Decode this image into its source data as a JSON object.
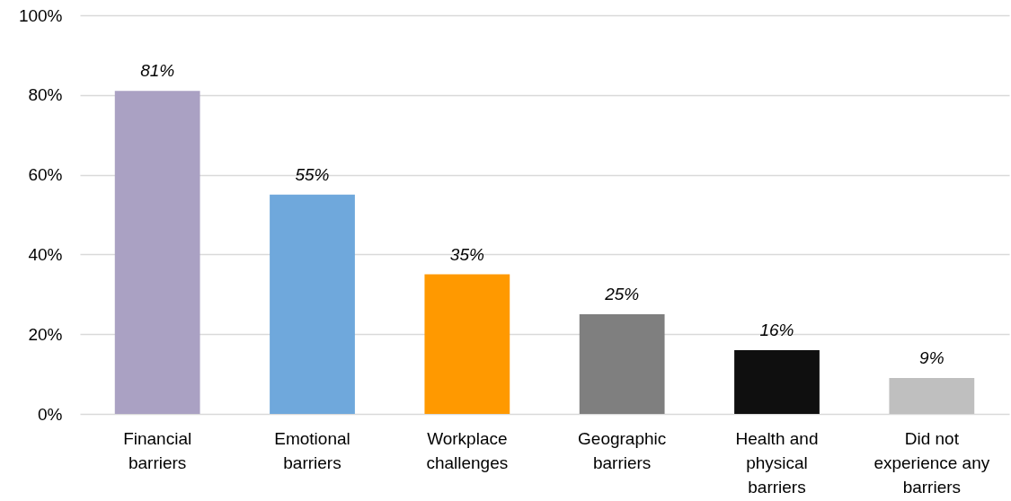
{
  "chart_data": {
    "type": "bar",
    "categories": [
      "Financial barriers",
      "Emotional barriers",
      "Workplace challenges",
      "Geographic barriers",
      "Health and physical barriers",
      "Did not experience any barriers"
    ],
    "values": [
      81,
      55,
      35,
      25,
      16,
      9
    ],
    "value_labels": [
      "81%",
      "55%",
      "35%",
      "25%",
      "16%",
      "9%"
    ],
    "colors": [
      "#aaa1c3",
      "#6fa8dc",
      "#ff9900",
      "#7f7f7f",
      "#0f0f0f",
      "#bfbfbf"
    ],
    "ylim": [
      0,
      100
    ],
    "yticks": [
      {
        "value": 0,
        "label": "0%"
      },
      {
        "value": 20,
        "label": "20%"
      },
      {
        "value": 40,
        "label": "40%"
      },
      {
        "value": 60,
        "label": "60%"
      },
      {
        "value": 80,
        "label": "80%"
      },
      {
        "value": 100,
        "label": "100%"
      }
    ],
    "grid": "y"
  }
}
